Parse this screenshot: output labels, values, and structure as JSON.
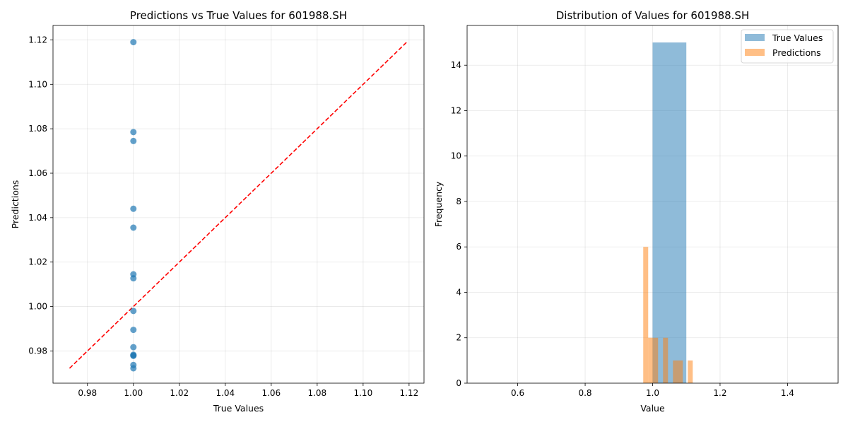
{
  "chart_data": [
    {
      "type": "scatter",
      "title": "Predictions vs True Values for 601988.SH",
      "xlabel": "True Values",
      "ylabel": "Predictions",
      "xlim": [
        0.965,
        1.1265
      ],
      "ylim": [
        0.9655,
        1.1265
      ],
      "xticks": [
        "0.98",
        "1.00",
        "1.02",
        "1.04",
        "1.06",
        "1.08",
        "1.10",
        "1.12"
      ],
      "yticks": [
        "0.98",
        "1.00",
        "1.02",
        "1.04",
        "1.06",
        "1.08",
        "1.10",
        "1.12"
      ],
      "grid": true,
      "point_color": "#1f77b4",
      "line_color": "#ff0000",
      "points": [
        {
          "x": 1.0,
          "y": 1.119
        },
        {
          "x": 1.0,
          "y": 1.0785
        },
        {
          "x": 1.0,
          "y": 1.0745
        },
        {
          "x": 1.0,
          "y": 1.044
        },
        {
          "x": 1.0,
          "y": 1.0355
        },
        {
          "x": 1.0,
          "y": 1.0145
        },
        {
          "x": 1.0,
          "y": 1.0127
        },
        {
          "x": 1.0,
          "y": 0.998
        },
        {
          "x": 1.0,
          "y": 0.9895
        },
        {
          "x": 1.0,
          "y": 0.9817
        },
        {
          "x": 1.0,
          "y": 0.978
        },
        {
          "x": 1.0,
          "y": 0.9778
        },
        {
          "x": 1.0,
          "y": 0.9737
        },
        {
          "x": 1.0,
          "y": 0.9722
        },
        {
          "x": 1.0,
          "y": 0.9783
        }
      ],
      "diagonal": [
        [
          0.9722,
          0.9722
        ],
        [
          1.119,
          1.119
        ]
      ]
    },
    {
      "type": "bar",
      "title": "Distribution of Values for 601988.SH",
      "xlabel": "Value",
      "ylabel": "Frequency",
      "xlim": [
        0.45,
        1.55
      ],
      "ylim": [
        0,
        15.75
      ],
      "xticks": [
        0.6,
        0.8,
        1.0,
        1.2,
        1.4
      ],
      "xtick_labels": [
        "0.6",
        "0.8",
        "1.0",
        "1.2",
        "1.4"
      ],
      "yticks": [
        0,
        2,
        4,
        6,
        8,
        10,
        12,
        14
      ],
      "ytick_labels": [
        "0",
        "2",
        "4",
        "6",
        "8",
        "10",
        "12",
        "14"
      ],
      "grid": true,
      "legend_position": "top-right",
      "series": [
        {
          "name": "True Values",
          "color": "#1f77b4",
          "alpha": 0.5,
          "bins": [
            {
              "x0": 1.0,
              "x1": 1.1,
              "count": 15
            }
          ]
        },
        {
          "name": "Predictions",
          "color": "#ff7f0e",
          "alpha": 0.5,
          "bins": [
            {
              "x0": 0.9722,
              "x1": 0.9869,
              "count": 6
            },
            {
              "x0": 0.9869,
              "x1": 1.0016,
              "count": 2
            },
            {
              "x0": 1.0016,
              "x1": 1.0162,
              "count": 2
            },
            {
              "x0": 1.0162,
              "x1": 1.0309,
              "count": 0
            },
            {
              "x0": 1.0309,
              "x1": 1.0456,
              "count": 2
            },
            {
              "x0": 1.0456,
              "x1": 1.0603,
              "count": 0
            },
            {
              "x0": 1.0603,
              "x1": 1.075,
              "count": 1
            },
            {
              "x0": 1.075,
              "x1": 1.0896,
              "count": 1
            },
            {
              "x0": 1.0896,
              "x1": 1.1043,
              "count": 0
            },
            {
              "x0": 1.1043,
              "x1": 1.119,
              "count": 1
            }
          ]
        }
      ]
    }
  ]
}
